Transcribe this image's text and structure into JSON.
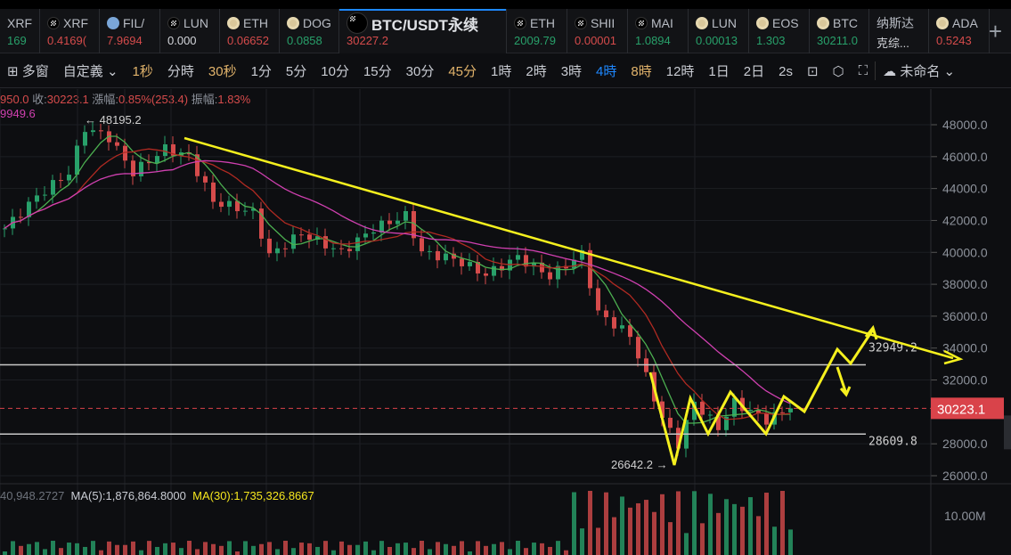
{
  "tabs": [
    {
      "name": "XRF",
      "price": "169",
      "dir": "up",
      "icon": "none"
    },
    {
      "name": "XRF",
      "price": "0.4169(",
      "dir": "dn",
      "icon": "okx"
    },
    {
      "name": "FIL/",
      "price": "7.9694",
      "dir": "dn",
      "icon": "fil"
    },
    {
      "name": "LUN",
      "price": "0.000",
      "dir": "wh",
      "icon": "okx"
    },
    {
      "name": "ETH",
      "price": "0.06652",
      "dir": "dn",
      "icon": "bnb"
    },
    {
      "name": "DOG",
      "price": "0.0858",
      "dir": "up",
      "icon": "bnb"
    },
    {
      "name": "BTC/USDT永续",
      "price": "30227.2",
      "dir": "dn",
      "icon": "okx",
      "active": true
    },
    {
      "name": "ETH",
      "price": "2009.79",
      "dir": "up",
      "icon": "okx"
    },
    {
      "name": "SHII",
      "price": "0.00001",
      "dir": "dn",
      "icon": "okx"
    },
    {
      "name": "MAI",
      "price": "1.0894",
      "dir": "up",
      "icon": "okx"
    },
    {
      "name": "LUN",
      "price": "0.00013",
      "dir": "up",
      "icon": "bnb"
    },
    {
      "name": "EOS",
      "price": "1.303",
      "dir": "up",
      "icon": "bnb"
    },
    {
      "name": "BTC",
      "price": "30211.0",
      "dir": "up",
      "icon": "bnb"
    },
    {
      "name": "纳斯达",
      "price": "克综...",
      "dir": "wh",
      "icon": "none"
    },
    {
      "name": "ADA",
      "price": "0.5243",
      "dir": "dn",
      "icon": "bnb"
    }
  ],
  "toolbar": {
    "multiwindow": "多窗",
    "custom": "自定義",
    "intervals": [
      {
        "l": "1秒",
        "c": "gold"
      },
      {
        "l": "分時",
        "c": ""
      },
      {
        "l": "30秒",
        "c": "gold"
      },
      {
        "l": "1分",
        "c": ""
      },
      {
        "l": "5分",
        "c": ""
      },
      {
        "l": "10分",
        "c": ""
      },
      {
        "l": "15分",
        "c": ""
      },
      {
        "l": "30分",
        "c": ""
      },
      {
        "l": "45分",
        "c": "gold"
      },
      {
        "l": "1時",
        "c": ""
      },
      {
        "l": "2時",
        "c": ""
      },
      {
        "l": "3時",
        "c": ""
      },
      {
        "l": "4時",
        "c": "blue"
      },
      {
        "l": "8時",
        "c": "gold"
      },
      {
        "l": "12時",
        "c": ""
      },
      {
        "l": "1日",
        "c": ""
      },
      {
        "l": "2日",
        "c": ""
      },
      {
        "l": "2s",
        "c": ""
      }
    ],
    "layout_name": "未命名"
  },
  "info": {
    "open_partial": "950.0",
    "close_label": "收:",
    "close": "30223.1",
    "change_label": "漲幅:",
    "change": "0.85%(253.4)",
    "amp_label": "振幅:",
    "amp": "1.83%",
    "ma_partial": "9949.6"
  },
  "chart_data": {
    "type": "candlestick",
    "symbol": "BTC/USDT永续",
    "interval": "4時",
    "y_ticks": [
      "48000.0",
      "46000.0",
      "44000.0",
      "42000.0",
      "40000.0",
      "38000.0",
      "36000.0",
      "34000.0",
      "32000.0",
      "28000.0",
      "26000.0"
    ],
    "ylim": [
      25500,
      49500
    ],
    "last_price": "30223.1",
    "high_label": "48195.2",
    "low_label": "26642.2",
    "levels": [
      {
        "value": 32949.2,
        "label": "32949.2"
      },
      {
        "value": 28609.8,
        "label": "28609.8"
      }
    ],
    "approx_close_path": [
      [
        0,
        41500
      ],
      [
        4,
        43500
      ],
      [
        8,
        45000
      ],
      [
        10,
        47800
      ],
      [
        13,
        47200
      ],
      [
        16,
        45000
      ],
      [
        20,
        46500
      ],
      [
        23,
        46000
      ],
      [
        26,
        43200
      ],
      [
        31,
        42500
      ],
      [
        33,
        39800
      ],
      [
        37,
        41200
      ],
      [
        42,
        40000
      ],
      [
        46,
        41500
      ],
      [
        50,
        42300
      ],
      [
        52,
        40000
      ],
      [
        56,
        39600
      ],
      [
        60,
        38600
      ],
      [
        64,
        39700
      ],
      [
        68,
        38500
      ],
      [
        72,
        39900
      ],
      [
        74,
        36200
      ],
      [
        78,
        34800
      ],
      [
        80,
        32200
      ],
      [
        82,
        29600
      ],
      [
        84,
        28000
      ],
      [
        86,
        30600
      ],
      [
        89,
        29000
      ],
      [
        91,
        30600
      ],
      [
        95,
        29500
      ],
      [
        98,
        30223
      ]
    ],
    "volume": {
      "ytick": "10.00M",
      "partial": "40,948.2727",
      "ma5_label": "MA(5):1,876,864.8000",
      "ma30_label": "MA(30):1,735,326.8667"
    },
    "colors": {
      "up": "#28a06a",
      "down": "#d54b4b",
      "ma_short": "#b02a22",
      "ma_long": "#d040b0",
      "annotation": "#f5f01e",
      "last_price_bg": "#d9434a"
    }
  }
}
